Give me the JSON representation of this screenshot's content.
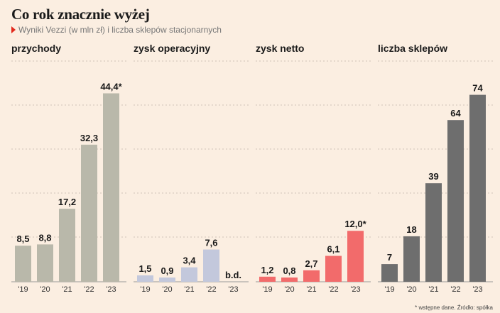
{
  "title": "Co rok znacznie wyżej",
  "subtitle": "Wyniki Vezzi (w mln zł) i liczba sklepów stacjonarnych",
  "footnote": "* wstępne dane. Źródło: spółka",
  "colors": {
    "background": "#fbeee1",
    "przychody": "#b9b8aa",
    "zysk_operacyjny": "#c3c8dc",
    "zysk_netto": "#f26b6b",
    "liczba_sklepow": "#6e6e6e",
    "accent": "#e2291c"
  },
  "chart_data": [
    {
      "type": "bar",
      "title": "przychody",
      "categories": [
        "'19",
        "'20",
        "'21",
        "'22",
        "'23"
      ],
      "values": [
        8.5,
        8.8,
        17.2,
        32.3,
        44.4
      ],
      "labels": [
        "8,5",
        "8,8",
        "17,2",
        "32,3",
        "44,4*"
      ],
      "ylim": [
        0,
        50
      ],
      "grid": true,
      "color": "#b9b8aa"
    },
    {
      "type": "bar",
      "title": "zysk operacyjny",
      "categories": [
        "'19",
        "'20",
        "'21",
        "'22",
        "'23"
      ],
      "values": [
        1.5,
        0.9,
        3.4,
        7.6,
        null
      ],
      "labels": [
        "1,5",
        "0,9",
        "3,4",
        "7,6",
        "b.d."
      ],
      "ylim": [
        0,
        50
      ],
      "grid": true,
      "color": "#c3c8dc"
    },
    {
      "type": "bar",
      "title": "zysk netto",
      "categories": [
        "'19",
        "'20",
        "'21",
        "'22",
        "'23"
      ],
      "values": [
        1.2,
        0.8,
        2.7,
        6.1,
        12.0
      ],
      "labels": [
        "1,2",
        "0,8",
        "2,7",
        "6,1",
        "12,0*"
      ],
      "ylim": [
        0,
        50
      ],
      "grid": true,
      "color": "#f26b6b"
    },
    {
      "type": "bar",
      "title": "liczba sklepów",
      "categories": [
        "'19",
        "'20",
        "'21",
        "'22",
        "'23"
      ],
      "values": [
        7,
        18,
        39,
        64,
        74
      ],
      "labels": [
        "7",
        "18",
        "39",
        "64",
        "74"
      ],
      "ylim": [
        0,
        84
      ],
      "grid": true,
      "color": "#6e6e6e"
    }
  ]
}
